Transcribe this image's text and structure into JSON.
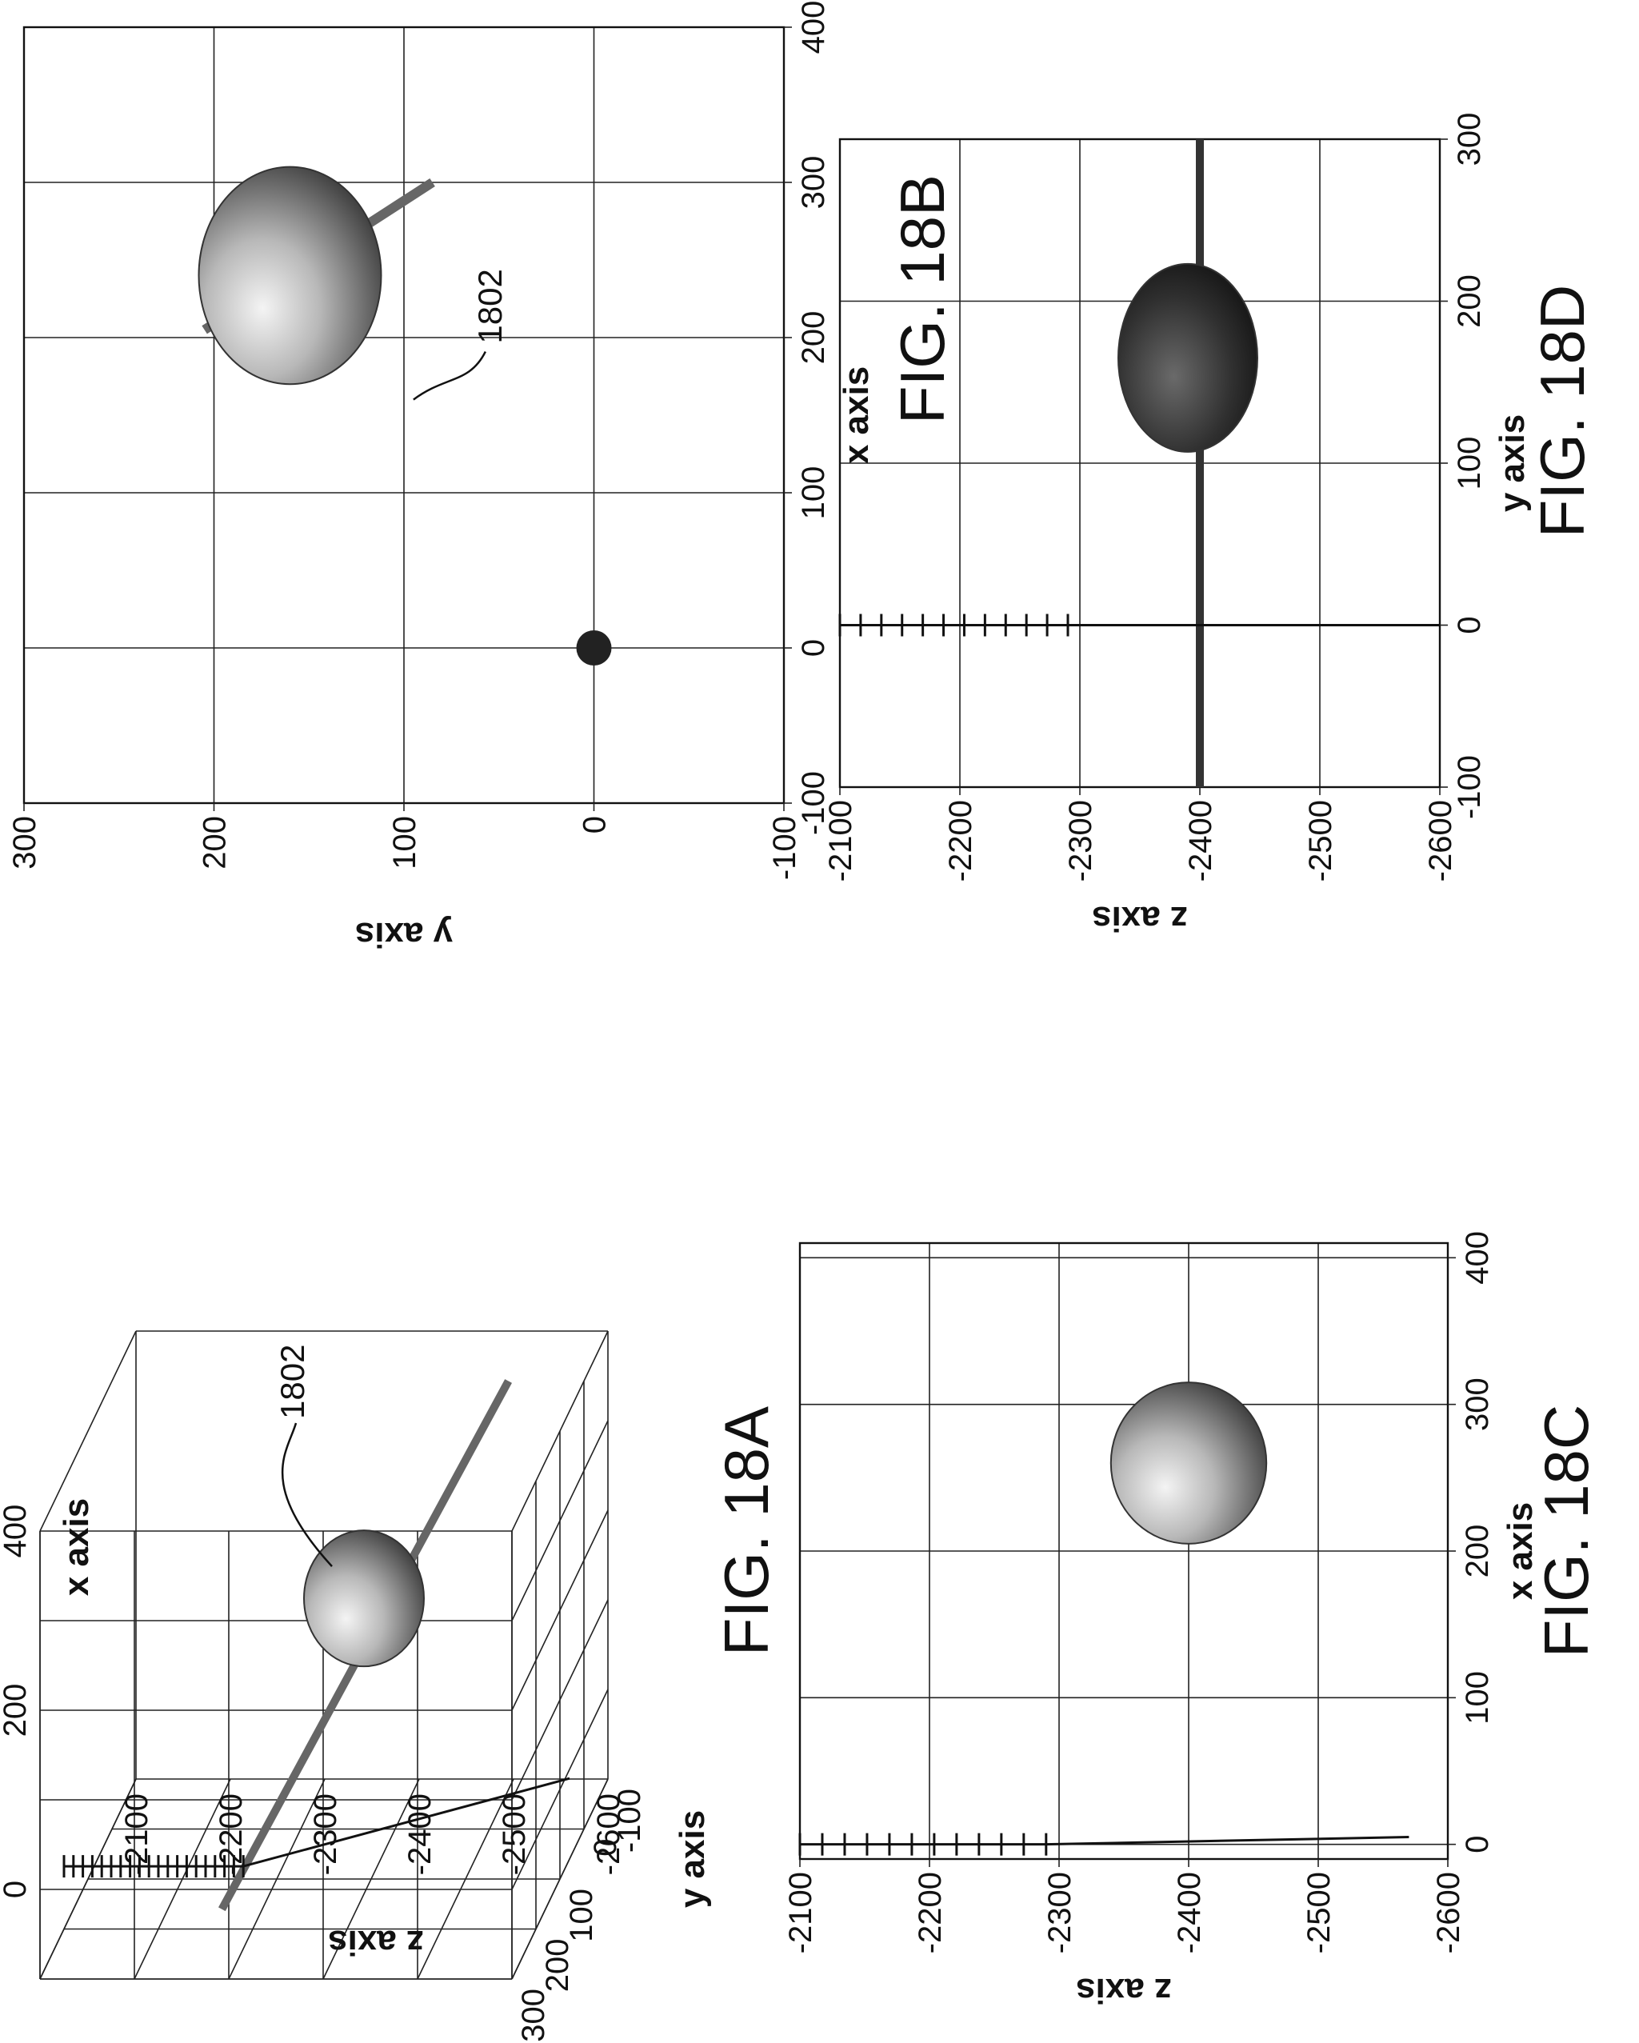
{
  "figures": [
    {
      "id": "A",
      "label": "FIG. 18A",
      "ref_label": "1802"
    },
    {
      "id": "B",
      "label": "FIG. 18B",
      "ref_label": "1802"
    },
    {
      "id": "C",
      "label": "FIG. 18C"
    },
    {
      "id": "D",
      "label": "FIG. 18D"
    }
  ],
  "chart_data": [
    {
      "figure": "FIG. 18A",
      "type": "scatter",
      "view": "3d",
      "xlabel": "x axis",
      "ylabel": "y axis",
      "zlabel": "z axis",
      "xlim": [
        -100,
        400
      ],
      "ylim": [
        -100,
        300
      ],
      "zlim": [
        -2600,
        -2100
      ],
      "xticks": [
        0,
        200,
        400
      ],
      "yticks": [
        300,
        200,
        100,
        0,
        -100
      ],
      "zticks": [
        -2100,
        -2200,
        -2300,
        -2400,
        -2500,
        -2600
      ],
      "x_tick_labels": [
        "0",
        "200",
        "400"
      ],
      "y_tick_labels": [
        "300",
        "200",
        "100",
        "0",
        "-100"
      ],
      "z_tick_labels": [
        "-2100",
        "-2200",
        "-2300",
        "-2400",
        "-2500",
        "-2600"
      ],
      "grid": true
    },
    {
      "figure": "FIG. 18B",
      "type": "scatter",
      "view": "top",
      "xlabel": "x axis",
      "ylabel": "y axis",
      "xlim": [
        -100,
        400
      ],
      "ylim": [
        -100,
        300
      ],
      "xticks": [
        -100,
        0,
        100,
        200,
        300,
        400
      ],
      "yticks": [
        -100,
        0,
        100,
        200,
        300
      ],
      "x_tick_labels": [
        "-100",
        "0",
        "100",
        "200",
        "300",
        "400"
      ],
      "y_tick_labels": [
        "-100",
        "0",
        "100",
        "200",
        "300"
      ],
      "grid": true,
      "object_center": [
        240,
        160
      ],
      "object_radius": [
        70,
        48
      ],
      "trajectory": [
        [
          205,
          205
        ],
        [
          300,
          85
        ]
      ],
      "origin_marker": [
        0,
        0
      ]
    },
    {
      "figure": "FIG. 18C",
      "type": "scatter",
      "view": "side",
      "xlabel": "x axis",
      "ylabel": "z axis",
      "xlim": [
        -10,
        410
      ],
      "ylim": [
        -2600,
        -2100
      ],
      "xticks": [
        0,
        100,
        200,
        300,
        400
      ],
      "yticks": [
        -2100,
        -2200,
        -2300,
        -2400,
        -2500,
        -2600
      ],
      "x_tick_labels": [
        "0",
        "100",
        "200",
        "300",
        "400"
      ],
      "y_tick_labels": [
        "-2100",
        "-2200",
        "-2300",
        "-2400",
        "-2500",
        "-2600"
      ],
      "grid": true,
      "object_center": [
        260,
        -2400
      ],
      "object_radius": [
        55,
        60
      ],
      "ladder": {
        "x": 0,
        "z_top": -2100,
        "z_bottom": -2290,
        "rungs": 12
      },
      "needle": [
        [
          0,
          -2290
        ],
        [
          5,
          -2570
        ]
      ]
    },
    {
      "figure": "FIG. 18D",
      "type": "scatter",
      "view": "side",
      "xlabel": "y axis",
      "ylabel": "z axis",
      "xlim": [
        -100,
        300
      ],
      "ylim": [
        -2600,
        -2100
      ],
      "xticks": [
        -100,
        0,
        100,
        200,
        300
      ],
      "yticks": [
        -2100,
        -2200,
        -2300,
        -2400,
        -2500,
        -2600
      ],
      "x_tick_labels": [
        "-100",
        "0",
        "100",
        "200",
        "300"
      ],
      "y_tick_labels": [
        "-2100",
        "-2200",
        "-2300",
        "-2400",
        "-2500",
        "-2600"
      ],
      "grid": true,
      "object_center": [
        165,
        -2390
      ],
      "object_radius": [
        58,
        58
      ],
      "trajectory": [
        [
          -100,
          -2400
        ],
        [
          300,
          -2400
        ]
      ],
      "ladder": {
        "x": 0,
        "z_top": -2100,
        "z_bottom": -2290,
        "rungs": 12
      },
      "needle": [
        [
          0,
          -2290
        ],
        [
          0,
          -2600
        ]
      ]
    }
  ]
}
